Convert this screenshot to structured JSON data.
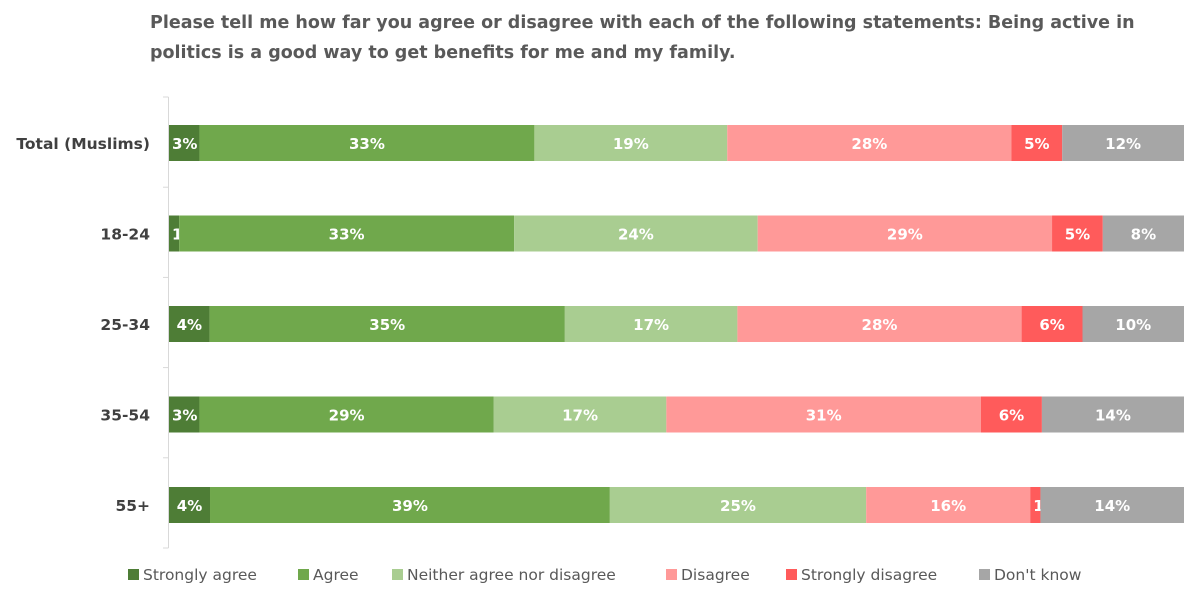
{
  "chart_data": {
    "type": "bar",
    "orientation": "horizontal",
    "stacked": true,
    "title": "Please tell me how far you agree or disagree with each of the following statements: Being active in politics is a good way to get benefits for me and my family.",
    "categories": [
      "Total (Muslims)",
      "18-24",
      "25-34",
      "35-54",
      "55+"
    ],
    "series": [
      {
        "name": "Strongly agree",
        "color": "#4e7d36",
        "values": [
          3,
          1,
          4,
          3,
          4
        ]
      },
      {
        "name": "Agree",
        "color": "#70a84c",
        "values": [
          33,
          33,
          35,
          29,
          39
        ]
      },
      {
        "name": "Neither agree nor disagree",
        "color": "#a9cd91",
        "values": [
          19,
          24,
          17,
          17,
          25
        ]
      },
      {
        "name": "Disagree",
        "color": "#ff9998",
        "values": [
          28,
          29,
          28,
          31,
          16
        ]
      },
      {
        "name": "Strongly disagree",
        "color": "#ff5b5b",
        "values": [
          5,
          5,
          6,
          6,
          1
        ]
      },
      {
        "name": "Don't know",
        "color": "#a6a6a6",
        "values": [
          12,
          8,
          10,
          14,
          14
        ]
      }
    ],
    "value_suffix": "%",
    "grid": false,
    "legend_position": "bottom"
  }
}
